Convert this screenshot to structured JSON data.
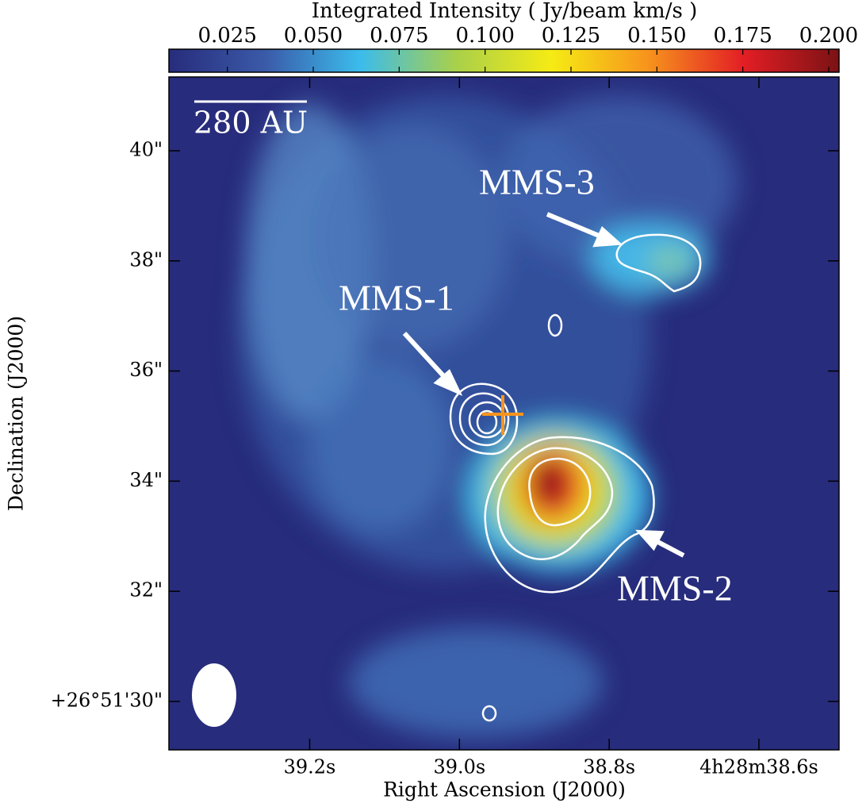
{
  "chart_data": {
    "type": "image",
    "title": "Integrated Intensity ( Jy/beam km/s )",
    "xlabel": "Right Ascension (J2000)",
    "ylabel": "Declination (J2000)",
    "xlim": [
      39.388,
      38.493
    ],
    "xticks": [
      {
        "value": 39.2,
        "label": "39.2s"
      },
      {
        "value": 39.0,
        "label": "39.0s"
      },
      {
        "value": 38.8,
        "label": "38.8s"
      },
      {
        "value": 38.6,
        "label": "4h28m38.6s"
      }
    ],
    "ylim": [
      29.12,
      41.34
    ],
    "yticks": [
      {
        "value": 30,
        "label": "+26°51'30\""
      },
      {
        "value": 32,
        "label": "32\""
      },
      {
        "value": 34,
        "label": "34\""
      },
      {
        "value": 36,
        "label": "36\""
      },
      {
        "value": 38,
        "label": "38\""
      },
      {
        "value": 40,
        "label": "40\""
      }
    ],
    "colorbar": {
      "lim": [
        0.008,
        0.203
      ],
      "ticks": [
        {
          "value": 0.025,
          "label": "0.025"
        },
        {
          "value": 0.05,
          "label": "0.050"
        },
        {
          "value": 0.075,
          "label": "0.075"
        },
        {
          "value": 0.1,
          "label": "0.100"
        },
        {
          "value": 0.125,
          "label": "0.125"
        },
        {
          "value": 0.15,
          "label": "0.150"
        },
        {
          "value": 0.175,
          "label": "0.175"
        },
        {
          "value": 0.2,
          "label": "0.200"
        }
      ],
      "colormap": [
        "#272c7c",
        "#3a5aa8",
        "#3bbcec",
        "#a9d04a",
        "#f6eb14",
        "#f7941d",
        "#e31e25",
        "#7b1214"
      ]
    },
    "annotations": [
      "MMS-1",
      "MMS-2",
      "MMS-3"
    ],
    "scalebar": "280 AU"
  }
}
